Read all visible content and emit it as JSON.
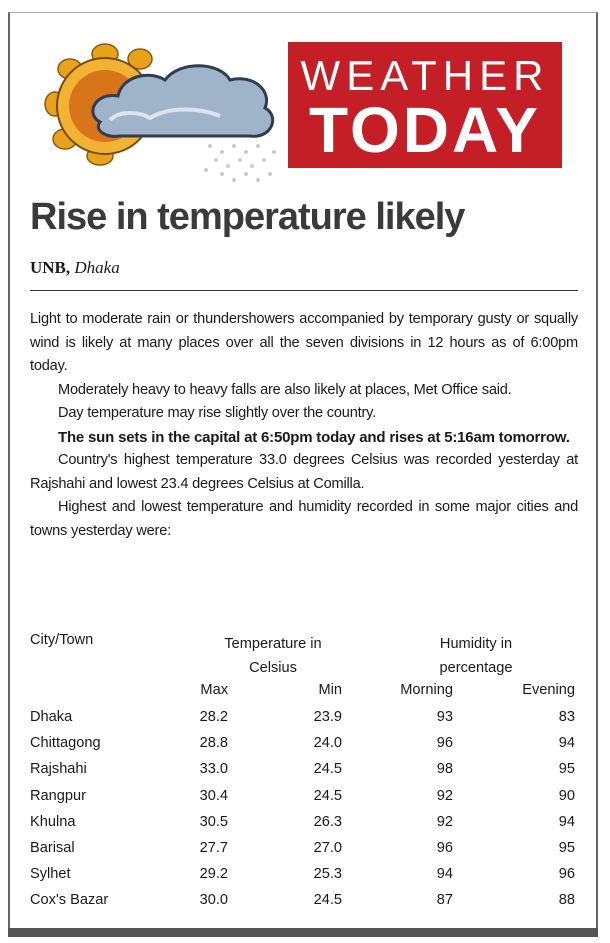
{
  "header": {
    "banner_line1": "WEATHER",
    "banner_line2": "TODAY"
  },
  "article": {
    "title": "Rise in temperature likely",
    "byline": {
      "agency": "UNB,",
      "location": "Dhaka"
    },
    "paragraphs": [
      "Light to moderate rain or thundershowers accompanied by temporary gusty or squally wind is likely at many places over all the seven divisions in 12 hours as of 6:00pm today.",
      "Moderately heavy to heavy falls are also likely at places, Met Office said.",
      "Day temperature may rise slightly over the country.",
      "The sun sets in the capital at 6:50pm today and rises at 5:16am tomorrow.",
      "Country's highest temperature 33.0 degrees Celsius was recorded yesterday at Rajshahi and lowest 23.4 degrees Celsius at Comilla.",
      "Highest and lowest temperature and humidity recorded in some major cities and towns yesterday were:"
    ]
  },
  "table": {
    "group_headers": [
      "City/Town",
      "Temperature in Celsius",
      "Humidity in percentage"
    ],
    "sub_headers": [
      "Max",
      "Min",
      "Morning",
      "Evening"
    ],
    "rows": [
      [
        "Dhaka",
        "28.2",
        "23.9",
        "93",
        "83"
      ],
      [
        "Chittagong",
        "28.8",
        "24.0",
        "96",
        "94"
      ],
      [
        "Rajshahi",
        "33.0",
        "24.5",
        "98",
        "95"
      ],
      [
        "Rangpur",
        "30.4",
        "24.5",
        "92",
        "90"
      ],
      [
        "Khulna",
        "30.5",
        "26.3",
        "92",
        "94"
      ],
      [
        "Barisal",
        "27.7",
        "27.0",
        "96",
        "95"
      ],
      [
        "Sylhet",
        "29.2",
        "25.3",
        "94",
        "96"
      ],
      [
        "Cox's Bazar",
        "30.0",
        "24.5",
        "87",
        "88"
      ]
    ]
  }
}
